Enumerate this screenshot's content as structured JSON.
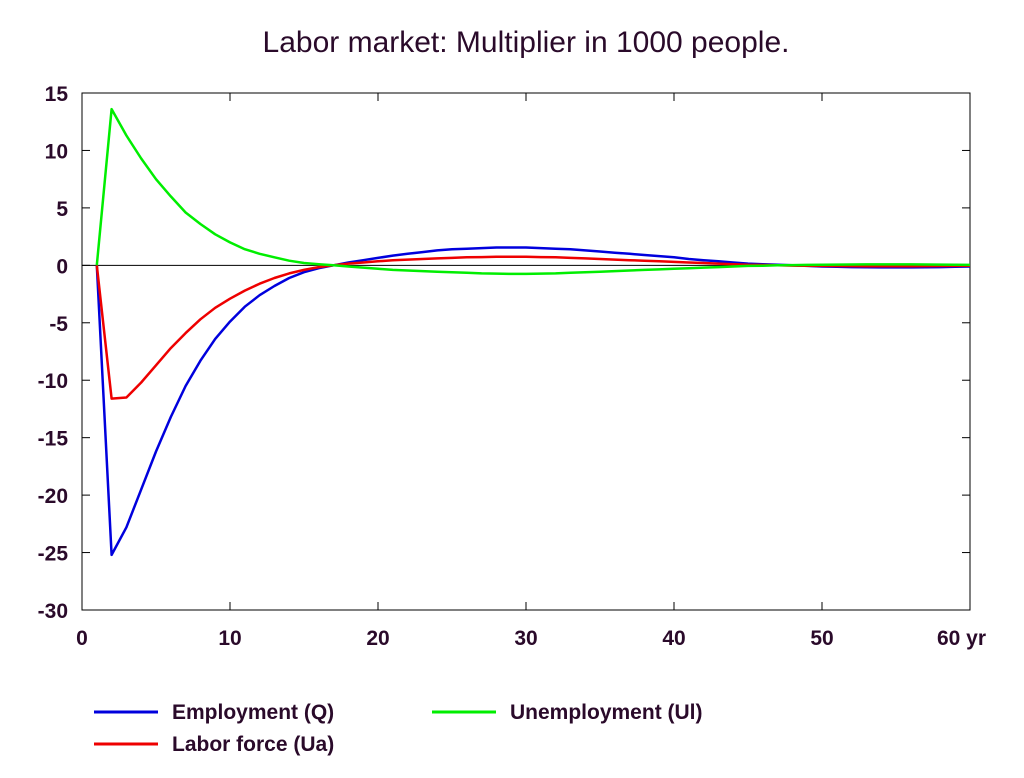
{
  "chart_data": {
    "type": "line",
    "title": "Labor market: Multiplier in 1000 people.",
    "xlabel": "",
    "ylabel": "",
    "x_unit_label": "yr",
    "xlim": [
      0,
      60
    ],
    "ylim": [
      -30,
      15
    ],
    "x_ticks": [
      0,
      10,
      20,
      30,
      40,
      50,
      60
    ],
    "y_ticks": [
      15,
      10,
      5,
      0,
      -5,
      -10,
      -15,
      -20,
      -25,
      -30
    ],
    "grid": false,
    "zero_line": true,
    "legend_position": "bottom",
    "x": [
      1,
      2,
      3,
      4,
      5,
      6,
      7,
      8,
      9,
      10,
      11,
      12,
      13,
      14,
      15,
      16,
      17,
      18,
      19,
      20,
      21,
      22,
      23,
      24,
      25,
      26,
      27,
      28,
      29,
      30,
      31,
      32,
      33,
      34,
      35,
      36,
      37,
      38,
      39,
      40,
      41,
      42,
      43,
      44,
      45,
      46,
      47,
      48,
      49,
      50,
      51,
      52,
      53,
      54,
      55,
      56,
      57,
      58,
      59,
      60
    ],
    "series": [
      {
        "name": "Employment (Q)",
        "color": "#0000dd",
        "values": [
          0,
          -25.2,
          -22.8,
          -19.5,
          -16.2,
          -13.2,
          -10.5,
          -8.3,
          -6.4,
          -4.9,
          -3.6,
          -2.6,
          -1.8,
          -1.1,
          -0.6,
          -0.25,
          0.0,
          0.25,
          0.45,
          0.65,
          0.85,
          1.0,
          1.15,
          1.3,
          1.4,
          1.45,
          1.5,
          1.55,
          1.55,
          1.55,
          1.5,
          1.45,
          1.4,
          1.3,
          1.2,
          1.1,
          1.0,
          0.9,
          0.8,
          0.7,
          0.55,
          0.45,
          0.35,
          0.25,
          0.15,
          0.1,
          0.05,
          0.0,
          -0.05,
          -0.1,
          -0.12,
          -0.15,
          -0.17,
          -0.18,
          -0.18,
          -0.18,
          -0.17,
          -0.15,
          -0.12,
          -0.1
        ]
      },
      {
        "name": "Labor force (Ua)",
        "color": "#ee0000",
        "values": [
          0,
          -11.6,
          -11.5,
          -10.2,
          -8.7,
          -7.2,
          -5.9,
          -4.7,
          -3.7,
          -2.9,
          -2.2,
          -1.6,
          -1.1,
          -0.7,
          -0.4,
          -0.15,
          0.0,
          0.15,
          0.25,
          0.35,
          0.45,
          0.5,
          0.55,
          0.6,
          0.65,
          0.7,
          0.72,
          0.75,
          0.75,
          0.75,
          0.72,
          0.7,
          0.65,
          0.6,
          0.55,
          0.5,
          0.45,
          0.4,
          0.35,
          0.3,
          0.25,
          0.2,
          0.15,
          0.1,
          0.05,
          0.03,
          0.0,
          -0.02,
          -0.04,
          -0.05,
          -0.06,
          -0.07,
          -0.08,
          -0.08,
          -0.08,
          -0.08,
          -0.07,
          -0.06,
          -0.05,
          -0.04
        ]
      },
      {
        "name": "Unemployment (Ul)",
        "color": "#00ee00",
        "values": [
          0,
          13.6,
          11.3,
          9.3,
          7.5,
          6.0,
          4.6,
          3.6,
          2.7,
          2.0,
          1.4,
          1.0,
          0.7,
          0.4,
          0.2,
          0.1,
          0.0,
          -0.1,
          -0.2,
          -0.3,
          -0.4,
          -0.45,
          -0.5,
          -0.55,
          -0.6,
          -0.65,
          -0.7,
          -0.72,
          -0.75,
          -0.75,
          -0.72,
          -0.7,
          -0.65,
          -0.6,
          -0.55,
          -0.5,
          -0.45,
          -0.4,
          -0.35,
          -0.3,
          -0.25,
          -0.2,
          -0.15,
          -0.1,
          -0.05,
          -0.03,
          0.0,
          0.02,
          0.04,
          0.05,
          0.06,
          0.07,
          0.08,
          0.08,
          0.08,
          0.08,
          0.07,
          0.06,
          0.05,
          0.04
        ]
      }
    ]
  }
}
